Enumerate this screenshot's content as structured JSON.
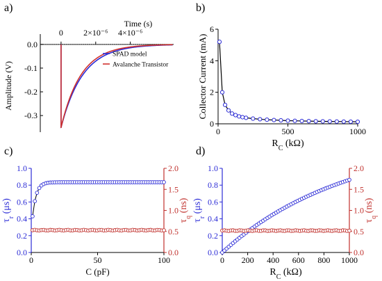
{
  "colors": {
    "spad": "#2b2bd6",
    "transistor": "#d0312d",
    "axis_left_blue": "#2b2bd6",
    "axis_right_red": "#c0302c",
    "line_black": "#000000"
  },
  "panels": {
    "a": {
      "label": "a)"
    },
    "b": {
      "label": "b)"
    },
    "c": {
      "label": "c)"
    },
    "d": {
      "label": "d)"
    }
  },
  "chart_data": [
    {
      "id": "a",
      "type": "line",
      "xlabel": "Time (s)",
      "ylabel": "Amplitude (V)",
      "xlim": [
        -1.2e-06,
        6.5e-06
      ],
      "ylim": [
        -0.37,
        0.02
      ],
      "x_axis_position": "top",
      "xticks": [
        {
          "value": 0,
          "label": "0"
        },
        {
          "value": 2e-06,
          "label": "2×10⁻⁶"
        },
        {
          "value": 4e-06,
          "label": "4×10⁻⁶"
        }
      ],
      "yticks": [
        {
          "value": 0.0,
          "label": "0.0"
        },
        {
          "value": -0.1,
          "label": "-0.1"
        },
        {
          "value": -0.2,
          "label": "-0.2"
        },
        {
          "value": -0.3,
          "label": "-0.3"
        }
      ],
      "legend_position": "right",
      "series": [
        {
          "name": "SPAD model",
          "color": "#2b2bd6",
          "peak": -0.35,
          "tau_s": 1.25e-06
        },
        {
          "name": "Avalanche Transistor",
          "color": "#d0312d",
          "peak": -0.35,
          "tau_s": 1.15e-06
        }
      ]
    },
    {
      "id": "b",
      "type": "line",
      "xlabel": "R",
      "xlabel_sub": "C",
      "xlabel_unit": "(kΩ)",
      "ylabel": "Collector Current (mA)",
      "xlim": [
        0,
        1000
      ],
      "ylim": [
        0,
        6
      ],
      "xticks": [
        0,
        500,
        1000
      ],
      "yticks": [
        0,
        2,
        4,
        6
      ],
      "series": [
        {
          "name": "",
          "color": "#2b2bd6",
          "x": [
            10,
            30,
            50,
            75,
            100,
            125,
            150,
            175,
            200,
            250,
            300,
            350,
            400,
            450,
            500,
            550,
            600,
            650,
            700,
            750,
            800,
            850,
            900,
            950,
            1000
          ],
          "y": [
            5.2,
            2.0,
            1.2,
            0.85,
            0.65,
            0.55,
            0.47,
            0.42,
            0.38,
            0.33,
            0.29,
            0.26,
            0.24,
            0.22,
            0.2,
            0.19,
            0.18,
            0.17,
            0.16,
            0.155,
            0.15,
            0.145,
            0.14,
            0.135,
            0.13
          ]
        }
      ]
    },
    {
      "id": "c",
      "type": "scatter",
      "xlabel": "C (pF)",
      "ylabel_left": "τ",
      "ylabel_left_sub": "r",
      "ylabel_left_unit": "(μs)",
      "ylabel_right": "τ",
      "ylabel_right_sub": "q",
      "ylabel_right_unit": "(ns)",
      "xlim": [
        0,
        100
      ],
      "ylim_left": [
        0,
        1.0
      ],
      "ylim_right": [
        0,
        2.0
      ],
      "xticks": [
        0,
        50,
        100
      ],
      "yticks_left": [
        "0.0",
        "0.2",
        "0.4",
        "0.6",
        "0.8",
        "1.0"
      ],
      "yticks_right": [
        "0.0",
        "0.5",
        "1.0",
        "1.5",
        "2.0"
      ],
      "series": [
        {
          "name": "",
          "axis": "left",
          "color": "#2b2bd6",
          "model": "saturating",
          "start_x": 1,
          "y0": 0.43,
          "ymax": 0.835,
          "k": 0.35
        },
        {
          "name": "",
          "axis": "right",
          "color": "#c0302c",
          "model": "flat",
          "start_x": 1,
          "value": 0.53
        }
      ]
    },
    {
      "id": "d",
      "type": "scatter",
      "xlabel": "R",
      "xlabel_sub": "C",
      "xlabel_unit": "(kΩ)",
      "ylabel_left": "τ",
      "ylabel_left_sub": "r",
      "ylabel_left_unit": "(μs)",
      "ylabel_right": "τ",
      "ylabel_right_sub": "q",
      "ylabel_right_unit": "(ns)",
      "xlim": [
        0,
        1000
      ],
      "ylim_left": [
        0,
        1.0
      ],
      "ylim_right": [
        0,
        2.0
      ],
      "xticks": [
        0,
        200,
        400,
        600,
        800,
        1000
      ],
      "yticks_left": [
        "0.0",
        "0.2",
        "0.4",
        "0.6",
        "0.8",
        "1.0"
      ],
      "yticks_right": [
        "0.0",
        "0.5",
        "1.0",
        "1.5",
        "2.0"
      ],
      "series": [
        {
          "name": "",
          "axis": "left",
          "color": "#2b2bd6",
          "model": "exp_rise",
          "start_x": 0,
          "y0": 0.0,
          "ymax": 1.35,
          "k": 0.00102
        },
        {
          "name": "",
          "axis": "right",
          "color": "#c0302c",
          "model": "flat",
          "start_x": 0,
          "value": 0.52
        }
      ]
    }
  ]
}
